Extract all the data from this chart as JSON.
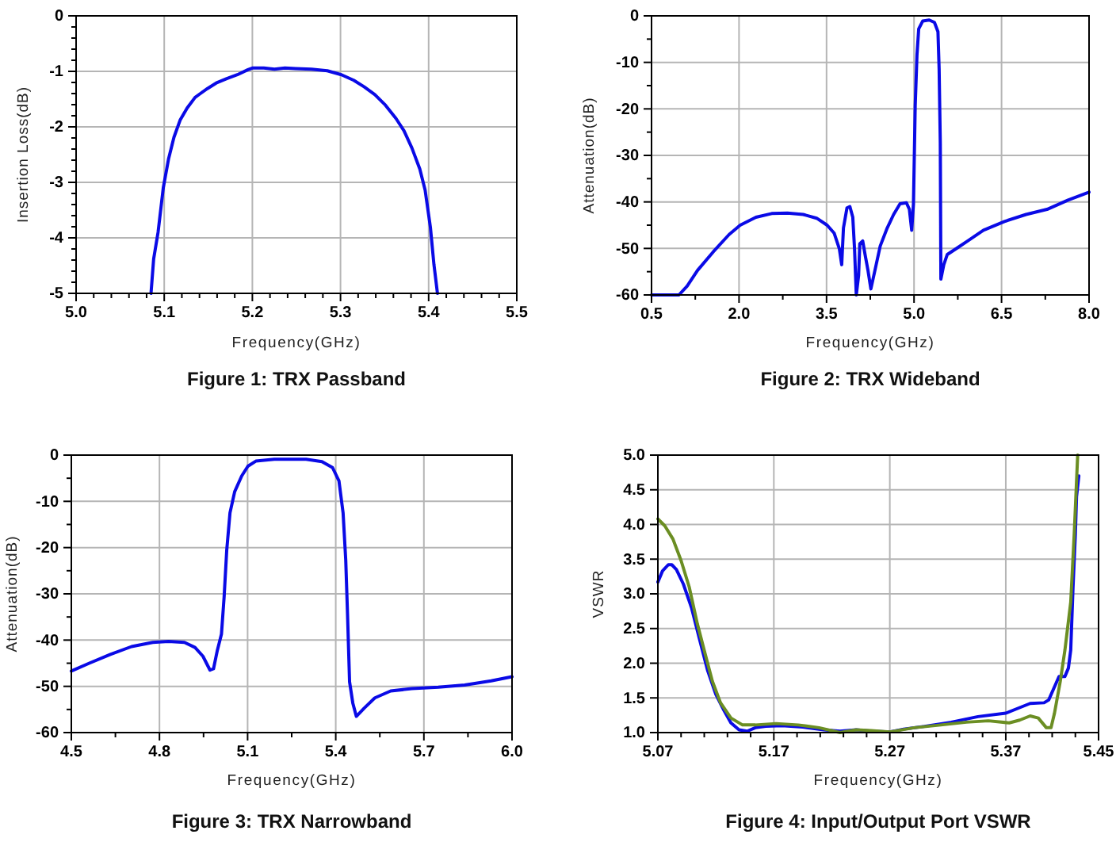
{
  "chart_data": [
    {
      "type": "line",
      "title": "Figure 1: TRX Passband",
      "xlabel": "Frequency(GHz)",
      "ylabel": "Insertion Loss(dB)",
      "xlim": [
        5.0,
        5.5
      ],
      "ylim": [
        -5,
        0
      ],
      "xticks": [
        {
          "value": 5.0,
          "label": "5.0"
        },
        {
          "value": 5.02,
          "label": null
        },
        {
          "value": 5.04,
          "label": null
        },
        {
          "value": 5.06,
          "label": null
        },
        {
          "value": 5.08,
          "label": null
        },
        5.1,
        {
          "value": 5.12,
          "label": null
        },
        {
          "value": 5.14,
          "label": null
        },
        {
          "value": 5.16,
          "label": null
        },
        {
          "value": 5.18,
          "label": null
        },
        5.2,
        {
          "value": 5.22,
          "label": null
        },
        {
          "value": 5.24,
          "label": null
        },
        {
          "value": 5.26,
          "label": null
        },
        {
          "value": 5.28,
          "label": null
        },
        5.3,
        {
          "value": 5.32,
          "label": null
        },
        {
          "value": 5.34,
          "label": null
        },
        {
          "value": 5.36,
          "label": null
        },
        {
          "value": 5.38,
          "label": null
        },
        5.4,
        {
          "value": 5.42,
          "label": null
        },
        {
          "value": 5.44,
          "label": null
        },
        {
          "value": 5.46,
          "label": null
        },
        {
          "value": 5.48,
          "label": null
        },
        5.5
      ],
      "yticks": [
        -5,
        {
          "value": -4.8,
          "label": null
        },
        {
          "value": -4.6,
          "label": null
        },
        {
          "value": -4.4,
          "label": null
        },
        {
          "value": -4.2,
          "label": null
        },
        -4,
        {
          "value": -3.8,
          "label": null
        },
        {
          "value": -3.6,
          "label": null
        },
        {
          "value": -3.4,
          "label": null
        },
        {
          "value": -3.2,
          "label": null
        },
        -3,
        {
          "value": -2.8,
          "label": null
        },
        {
          "value": -2.6,
          "label": null
        },
        {
          "value": -2.4,
          "label": null
        },
        {
          "value": -2.2,
          "label": null
        },
        -2,
        {
          "value": -1.8,
          "label": null
        },
        {
          "value": -1.6,
          "label": null
        },
        {
          "value": -1.4,
          "label": null
        },
        {
          "value": -1.2,
          "label": null
        },
        -1,
        {
          "value": -0.8,
          "label": null
        },
        {
          "value": -0.6,
          "label": null
        },
        {
          "value": -0.4,
          "label": null
        },
        {
          "value": -0.2,
          "label": null
        },
        0
      ],
      "grid": true,
      "series": [
        {
          "color": "#0a0ae6",
          "x": [
            5.085,
            5.088,
            5.093,
            5.099,
            5.105,
            5.111,
            5.118,
            5.126,
            5.135,
            5.141,
            5.149,
            5.159,
            5.171,
            5.183,
            5.195,
            5.2,
            5.213,
            5.225,
            5.237,
            5.249,
            5.267,
            5.285,
            5.301,
            5.315,
            5.327,
            5.339,
            5.351,
            5.363,
            5.372,
            5.381,
            5.39,
            5.396,
            5.402,
            5.406,
            5.41
          ],
          "values": [
            -5,
            -4.38,
            -3.9,
            -3.09,
            -2.57,
            -2.19,
            -1.88,
            -1.66,
            -1.47,
            -1.4,
            -1.31,
            -1.21,
            -1.13,
            -1.06,
            -0.97,
            -0.94,
            -0.94,
            -0.96,
            -0.94,
            -0.95,
            -0.96,
            -0.99,
            -1.06,
            -1.16,
            -1.28,
            -1.42,
            -1.61,
            -1.85,
            -2.07,
            -2.38,
            -2.76,
            -3.14,
            -3.81,
            -4.48,
            -5
          ]
        }
      ]
    },
    {
      "type": "line",
      "title": "Figure 2: TRX Wideband",
      "xlabel": "Frequency(GHz)",
      "ylabel": "Attenuation(dB)",
      "xlim": [
        0.5,
        8.0
      ],
      "ylim": [
        -60,
        0
      ],
      "xticks": [
        0.5,
        {
          "value": 1.25,
          "label": null
        },
        {
          "value": 2.0,
          "label": "2.0"
        },
        {
          "value": 2.75,
          "label": null
        },
        3.5,
        {
          "value": 4.25,
          "label": null
        },
        {
          "value": 5.0,
          "label": "5.0"
        },
        {
          "value": 5.75,
          "label": null
        },
        6.5,
        {
          "value": 7.25,
          "label": null
        },
        {
          "value": 8.0,
          "label": "8.0"
        }
      ],
      "yticks": [
        -60,
        {
          "value": -55,
          "label": null
        },
        -50,
        {
          "value": -45,
          "label": null
        },
        -40,
        {
          "value": -35,
          "label": null
        },
        -30,
        {
          "value": -25,
          "label": null
        },
        -20,
        {
          "value": -15,
          "label": null
        },
        -10,
        {
          "value": -5,
          "label": null
        },
        0
      ],
      "grid": true,
      "series": [
        {
          "color": "#0a0ae6",
          "x": [
            0.5,
            0.97,
            1.11,
            1.29,
            1.56,
            1.83,
            2.02,
            2.29,
            2.56,
            2.83,
            3.1,
            3.33,
            3.51,
            3.63,
            3.72,
            3.76,
            3.79,
            3.85,
            3.9,
            3.95,
            3.98,
            4.01,
            4.05,
            4.07,
            4.12,
            4.16,
            4.21,
            4.26,
            4.33,
            4.42,
            4.54,
            4.65,
            4.76,
            4.87,
            4.92,
            4.96,
            4.99,
            5.02,
            5.05,
            5.08,
            5.15,
            5.26,
            5.35,
            5.41,
            5.43,
            5.45,
            5.46,
            5.51,
            5.57,
            5.74,
            5.92,
            6.19,
            6.55,
            6.92,
            7.28,
            7.64,
            8.0
          ],
          "values": [
            -60,
            -60,
            -58.1,
            -54.7,
            -50.7,
            -47,
            -45,
            -43.3,
            -42.5,
            -42.4,
            -42.7,
            -43.5,
            -45,
            -46.7,
            -50.1,
            -53.5,
            -45.6,
            -41.3,
            -41,
            -43.3,
            -50.1,
            -60,
            -55.8,
            -49,
            -48.4,
            -51.3,
            -54.7,
            -58.7,
            -54.7,
            -49.5,
            -45.6,
            -42.7,
            -40.4,
            -40.2,
            -41.6,
            -46.1,
            -40.4,
            -19.4,
            -8.5,
            -2.8,
            -1.1,
            -0.9,
            -1.4,
            -3.4,
            -11.4,
            -27.3,
            -56.6,
            -53.5,
            -51.3,
            -49.9,
            -48.4,
            -46.1,
            -44.2,
            -42.7,
            -41.6,
            -39.6,
            -37.9
          ]
        }
      ]
    },
    {
      "type": "line",
      "title": "Figure 3: TRX Narrowband",
      "xlabel": "Frequency(GHz)",
      "ylabel": "Attenuation(dB)",
      "xlim": [
        4.5,
        6.0
      ],
      "ylim": [
        -60,
        0
      ],
      "xticks": [
        4.5,
        {
          "value": 4.65,
          "label": null
        },
        4.8,
        {
          "value": 4.95,
          "label": null
        },
        5.1,
        {
          "value": 5.25,
          "label": null
        },
        5.4,
        {
          "value": 5.55,
          "label": null
        },
        5.7,
        {
          "value": 5.85,
          "label": null
        },
        {
          "value": 6.0,
          "label": "6.0"
        }
      ],
      "yticks": [
        -60,
        {
          "value": -55,
          "label": null
        },
        -50,
        {
          "value": -45,
          "label": null
        },
        -40,
        {
          "value": -35,
          "label": null
        },
        -30,
        {
          "value": -25,
          "label": null
        },
        -20,
        {
          "value": -15,
          "label": null
        },
        -10,
        {
          "value": -5,
          "label": null
        },
        0
      ],
      "grid": true,
      "series": [
        {
          "color": "#0a0ae6",
          "x": [
            4.5,
            4.561,
            4.633,
            4.705,
            4.777,
            4.831,
            4.885,
            4.921,
            4.948,
            4.972,
            4.984,
            4.997,
            5.011,
            5.02,
            5.029,
            5.04,
            5.056,
            5.08,
            5.101,
            5.128,
            5.191,
            5.299,
            5.353,
            5.389,
            5.411,
            5.425,
            5.434,
            5.44,
            5.447,
            5.458,
            5.47,
            5.497,
            5.533,
            5.587,
            5.659,
            5.749,
            5.839,
            5.929,
            6.0
          ],
          "values": [
            -46.7,
            -45,
            -43.1,
            -41.4,
            -40.5,
            -40.3,
            -40.5,
            -41.6,
            -43.5,
            -46.5,
            -46.2,
            -42.2,
            -38.7,
            -30.7,
            -20.5,
            -12.5,
            -7.9,
            -4.5,
            -2.4,
            -1.3,
            -0.9,
            -0.9,
            -1.4,
            -2.7,
            -5.6,
            -12.5,
            -22.7,
            -34.2,
            -49,
            -53.6,
            -56.5,
            -54.7,
            -52.5,
            -51,
            -50.5,
            -50.2,
            -49.7,
            -48.8,
            -47.9
          ]
        }
      ]
    },
    {
      "type": "line",
      "title": "Figure 4: Input/Output Port VSWR",
      "xlabel": "Frequency(GHz)",
      "ylabel": "VSWR",
      "xlim": [
        5.07,
        5.45
      ],
      "ylim": [
        1.0,
        5.0
      ],
      "xticks": [
        5.07,
        {
          "value": 5.09,
          "label": null
        },
        {
          "value": 5.11,
          "label": null
        },
        {
          "value": 5.13,
          "label": null
        },
        {
          "value": 5.15,
          "label": null
        },
        5.17,
        {
          "value": 5.19,
          "label": null
        },
        {
          "value": 5.21,
          "label": null
        },
        {
          "value": 5.23,
          "label": null
        },
        {
          "value": 5.25,
          "label": null
        },
        5.27,
        {
          "value": 5.29,
          "label": null
        },
        {
          "value": 5.31,
          "label": null
        },
        {
          "value": 5.33,
          "label": null
        },
        {
          "value": 5.35,
          "label": null
        },
        5.37,
        {
          "value": 5.39,
          "label": null
        },
        {
          "value": 5.41,
          "label": null
        },
        {
          "value": 5.43,
          "label": null
        },
        5.45
      ],
      "yticks": [
        {
          "value": 1.0,
          "label": "1.0"
        },
        1.5,
        {
          "value": 2.0,
          "label": "2.0"
        },
        2.5,
        {
          "value": 3.0,
          "label": "3.0"
        },
        3.5,
        {
          "value": 4.0,
          "label": "4.0"
        },
        4.5,
        {
          "value": 5.0,
          "label": "5.0"
        }
      ],
      "grid": true,
      "series": [
        {
          "color": "#0a0ae6",
          "x": [
            5.07,
            5.074,
            5.079,
            5.082,
            5.086,
            5.092,
            5.099,
            5.106,
            5.113,
            5.12,
            5.127,
            5.133,
            5.14,
            5.147,
            5.154,
            5.163,
            5.177,
            5.195,
            5.213,
            5.227,
            5.241,
            5.254,
            5.27,
            5.282,
            5.3,
            5.323,
            5.346,
            5.37,
            5.382,
            5.391,
            5.403,
            5.407,
            5.412,
            5.416,
            5.421,
            5.424,
            5.426,
            5.428,
            5.43,
            5.431,
            5.433
          ],
          "values": [
            3.17,
            3.33,
            3.42,
            3.42,
            3.35,
            3.14,
            2.8,
            2.34,
            1.89,
            1.55,
            1.32,
            1.14,
            1.04,
            1.02,
            1.07,
            1.09,
            1.1,
            1.08,
            1.04,
            1.02,
            1.04,
            1.02,
            1.01,
            1.05,
            1.09,
            1.15,
            1.23,
            1.28,
            1.36,
            1.42,
            1.43,
            1.47,
            1.66,
            1.81,
            1.81,
            1.93,
            2.19,
            3.1,
            3.86,
            4.4,
            4.7
          ]
        },
        {
          "color": "#6b8e23",
          "x": [
            5.07,
            5.076,
            5.083,
            5.09,
            5.097,
            5.104,
            5.111,
            5.117,
            5.124,
            5.133,
            5.143,
            5.154,
            5.172,
            5.191,
            5.209,
            5.227,
            5.241,
            5.254,
            5.27,
            5.291,
            5.314,
            5.336,
            5.355,
            5.373,
            5.382,
            5.391,
            5.398,
            5.405,
            5.409,
            5.412,
            5.417,
            5.421,
            5.426,
            5.429,
            5.432
          ],
          "values": [
            4.08,
            3.98,
            3.79,
            3.48,
            3.1,
            2.57,
            2.12,
            1.74,
            1.43,
            1.21,
            1.11,
            1.11,
            1.13,
            1.11,
            1.07,
            1.0,
            1.04,
            1.03,
            1.01,
            1.07,
            1.11,
            1.15,
            1.17,
            1.14,
            1.18,
            1.24,
            1.21,
            1.07,
            1.07,
            1.28,
            1.74,
            2.19,
            2.88,
            3.86,
            5.0
          ]
        }
      ]
    }
  ]
}
